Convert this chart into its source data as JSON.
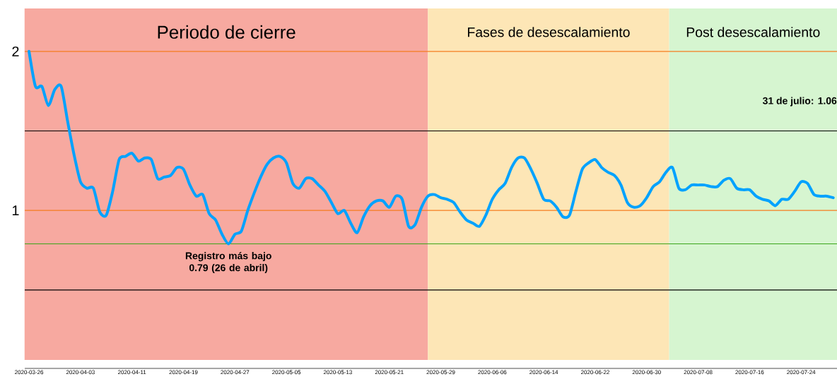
{
  "chart_data": {
    "type": "line",
    "x": [
      "2020-03-26",
      "2020-03-27",
      "2020-03-28",
      "2020-03-29",
      "2020-03-30",
      "2020-03-31",
      "2020-04-01",
      "2020-04-02",
      "2020-04-03",
      "2020-04-04",
      "2020-04-05",
      "2020-04-06",
      "2020-04-07",
      "2020-04-08",
      "2020-04-09",
      "2020-04-10",
      "2020-04-11",
      "2020-04-12",
      "2020-04-13",
      "2020-04-14",
      "2020-04-15",
      "2020-04-16",
      "2020-04-17",
      "2020-04-18",
      "2020-04-19",
      "2020-04-20",
      "2020-04-21",
      "2020-04-22",
      "2020-04-23",
      "2020-04-24",
      "2020-04-25",
      "2020-04-26",
      "2020-04-27",
      "2020-04-28",
      "2020-04-29",
      "2020-04-30",
      "2020-05-01",
      "2020-05-02",
      "2020-05-03",
      "2020-05-04",
      "2020-05-05",
      "2020-05-06",
      "2020-05-07",
      "2020-05-08",
      "2020-05-09",
      "2020-05-10",
      "2020-05-11",
      "2020-05-12",
      "2020-05-13",
      "2020-05-14",
      "2020-05-15",
      "2020-05-16",
      "2020-05-17",
      "2020-05-18",
      "2020-05-19",
      "2020-05-20",
      "2020-05-21",
      "2020-05-22",
      "2020-05-23",
      "2020-05-24",
      "2020-05-25",
      "2020-05-26",
      "2020-05-27",
      "2020-05-28",
      "2020-05-29",
      "2020-05-30",
      "2020-05-31",
      "2020-06-01",
      "2020-06-02",
      "2020-06-03",
      "2020-06-04",
      "2020-06-05",
      "2020-06-06",
      "2020-06-07",
      "2020-06-08",
      "2020-06-09",
      "2020-06-10",
      "2020-06-11",
      "2020-06-12",
      "2020-06-13",
      "2020-06-14",
      "2020-06-15",
      "2020-06-16",
      "2020-06-17",
      "2020-06-18",
      "2020-06-19",
      "2020-06-20",
      "2020-06-21",
      "2020-06-22",
      "2020-06-23",
      "2020-06-24",
      "2020-06-25",
      "2020-06-26",
      "2020-06-27",
      "2020-06-28",
      "2020-06-29",
      "2020-06-30",
      "2020-07-01",
      "2020-07-02",
      "2020-07-03",
      "2020-07-04",
      "2020-07-05",
      "2020-07-06",
      "2020-07-07",
      "2020-07-08",
      "2020-07-09",
      "2020-07-10",
      "2020-07-11",
      "2020-07-12",
      "2020-07-13",
      "2020-07-14",
      "2020-07-15",
      "2020-07-16",
      "2020-07-17",
      "2020-07-18",
      "2020-07-19",
      "2020-07-20",
      "2020-07-21",
      "2020-07-22",
      "2020-07-23",
      "2020-07-24",
      "2020-07-25",
      "2020-07-26",
      "2020-07-27",
      "2020-07-28",
      "2020-07-29"
    ],
    "series": [
      {
        "color": "#00a2ff",
        "values": [
          2.0,
          1.78,
          1.78,
          1.66,
          1.76,
          1.78,
          1.56,
          1.35,
          1.18,
          1.14,
          1.14,
          0.99,
          0.97,
          1.12,
          1.32,
          1.34,
          1.36,
          1.31,
          1.33,
          1.32,
          1.2,
          1.21,
          1.22,
          1.27,
          1.26,
          1.16,
          1.09,
          1.1,
          0.98,
          0.94,
          0.85,
          0.79,
          0.85,
          0.87,
          1.0,
          1.11,
          1.21,
          1.29,
          1.33,
          1.34,
          1.3,
          1.17,
          1.14,
          1.2,
          1.2,
          1.16,
          1.12,
          1.05,
          0.98,
          1.0,
          0.92,
          0.86,
          0.96,
          1.03,
          1.06,
          1.06,
          1.02,
          1.09,
          1.07,
          0.9,
          0.91,
          1.02,
          1.09,
          1.1,
          1.08,
          1.07,
          1.05,
          0.99,
          0.94,
          0.92,
          0.9,
          0.97,
          1.07,
          1.13,
          1.17,
          1.27,
          1.33,
          1.33,
          1.26,
          1.17,
          1.07,
          1.06,
          1.02,
          0.96,
          0.97,
          1.12,
          1.26,
          1.3,
          1.32,
          1.27,
          1.24,
          1.22,
          1.16,
          1.05,
          1.02,
          1.03,
          1.08,
          1.15,
          1.18,
          1.24,
          1.27,
          1.14,
          1.13,
          1.16,
          1.16,
          1.16,
          1.15,
          1.15,
          1.19,
          1.2,
          1.14,
          1.13,
          1.13,
          1.09,
          1.07,
          1.06,
          1.03,
          1.07,
          1.07,
          1.12,
          1.18,
          1.17,
          1.1,
          1.09,
          1.09,
          1.08
        ]
      }
    ],
    "marker": "none",
    "line_style": "solid",
    "xlim": [
      "2020-03-25T08:00",
      "2020-07-29T14:00"
    ],
    "xticks": [
      "2020-03-26",
      "2020-04-03",
      "2020-04-11",
      "2020-04-19",
      "2020-04-27",
      "2020-05-05",
      "2020-05-13",
      "2020-05-21",
      "2020-05-29",
      "2020-06-06",
      "2020-06-14",
      "2020-06-22",
      "2020-06-30",
      "2020-07-08",
      "2020-07-16",
      "2020-07-24"
    ],
    "ylim": [
      0.06,
      2.27
    ],
    "yticks": [
      1,
      2
    ],
    "bands": [
      {
        "axis": "x",
        "from": "2020-03-25T08:00",
        "to": "2020-05-27",
        "label": "Periodo de cierre",
        "color": "#f7a9a0"
      },
      {
        "axis": "x",
        "from": "2020-05-27",
        "to": "2020-07-03T12:00",
        "label": "Fases de desescalamiento",
        "color": "#fde6b6"
      },
      {
        "axis": "x",
        "from": "2020-07-03T12:00",
        "to": "2020-07-29T14:00",
        "label": "Post desescalamiento",
        "color": "#d6f5d0"
      }
    ],
    "ref_lines": [
      {
        "axis": "y",
        "value": 2,
        "color": "#f57c1f"
      },
      {
        "axis": "y",
        "value": 1.5,
        "color": "#000000"
      },
      {
        "axis": "y",
        "value": 1,
        "color": "#f57c1f"
      },
      {
        "axis": "y",
        "value": 0.79,
        "color": "#3aa51a"
      },
      {
        "axis": "y",
        "value": 0.5,
        "color": "#000000"
      }
    ],
    "annotations": [
      {
        "text": "Registro más bajo 0.79 (26 de abril)",
        "x": "2020-04-26",
        "y": 0.79
      },
      "31 de julio: 1.06"
    ]
  }
}
